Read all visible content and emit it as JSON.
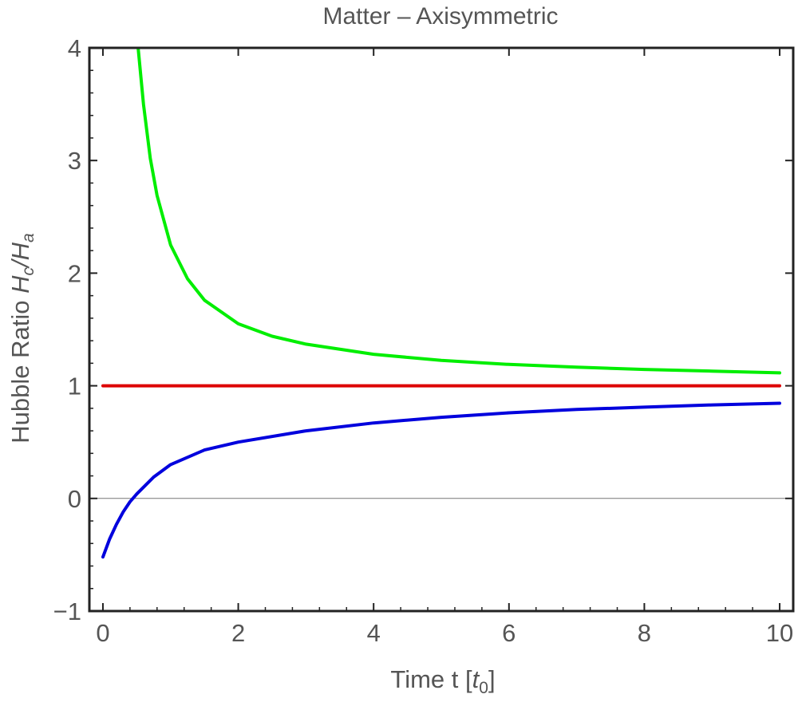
{
  "chart_data": {
    "type": "line",
    "title": "Matter – Axisymmetric",
    "xlabel": {
      "prefix": "Time  t [",
      "var": "t",
      "sub": "0",
      "suffix": "]"
    },
    "ylabel": {
      "prefix": "Hubble Ratio  ",
      "num_var": "H",
      "num_sub": "c",
      "slash": "/",
      "den_var": "H",
      "den_sub": "a"
    },
    "xlim": [
      -0.2,
      10.2
    ],
    "ylim": [
      -1,
      4
    ],
    "x_ticks": [
      0,
      2,
      4,
      6,
      8,
      10
    ],
    "y_ticks": [
      -1,
      0,
      1,
      2,
      3,
      4
    ],
    "x_tick_labels": [
      "0",
      "2",
      "4",
      "6",
      "8",
      "10"
    ],
    "y_tick_labels": [
      "−1",
      "0",
      "1",
      "2",
      "3",
      "4"
    ],
    "grid": false,
    "zero_line": true,
    "series": [
      {
        "color": "#00ee00",
        "x": [
          0.52,
          0.6,
          0.7,
          0.8,
          1.0,
          1.25,
          1.5,
          2.0,
          2.5,
          3.0,
          4.0,
          5.0,
          6.0,
          7.0,
          8.0,
          9.0,
          10.0
        ],
        "y": [
          4.0,
          3.5,
          3.02,
          2.69,
          2.25,
          1.95,
          1.76,
          1.55,
          1.44,
          1.37,
          1.28,
          1.225,
          1.19,
          1.165,
          1.145,
          1.13,
          1.115
        ]
      },
      {
        "color": "#dd0000",
        "x": [
          0,
          10
        ],
        "y": [
          1,
          1
        ]
      },
      {
        "color": "#0000dd",
        "x": [
          0.0,
          0.1,
          0.2,
          0.3,
          0.4,
          0.5,
          0.75,
          1.0,
          1.5,
          2.0,
          3.0,
          4.0,
          5.0,
          6.0,
          7.0,
          8.0,
          9.0,
          10.0
        ],
        "y": [
          -0.52,
          -0.36,
          -0.23,
          -0.12,
          -0.03,
          0.04,
          0.19,
          0.3,
          0.43,
          0.5,
          0.6,
          0.67,
          0.72,
          0.76,
          0.79,
          0.81,
          0.83,
          0.845
        ]
      }
    ]
  }
}
